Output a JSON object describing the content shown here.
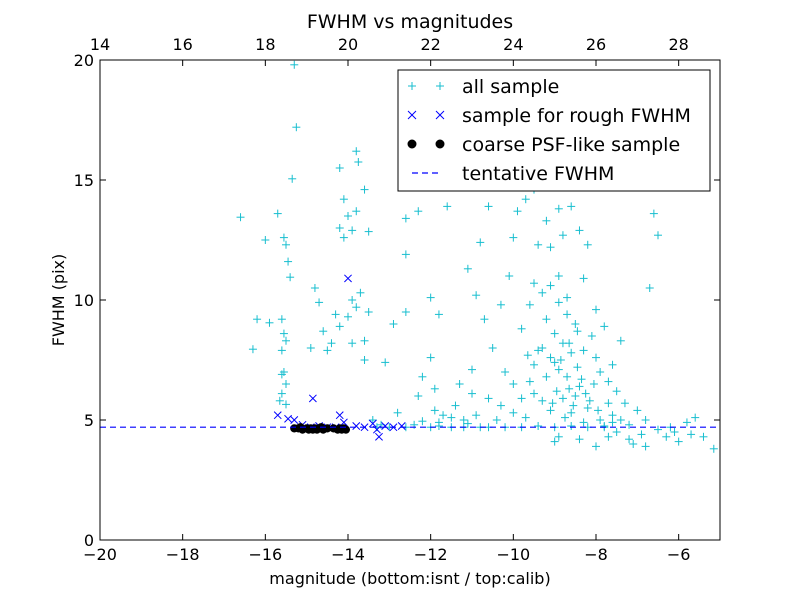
{
  "chart_data": {
    "type": "scatter",
    "title": "FWHM vs magnitudes",
    "xlabel": "magnitude (bottom:isnt / top:calib)",
    "ylabel": "FWHM (pix)",
    "xlim": [
      -20,
      -5
    ],
    "ylim": [
      0,
      20
    ],
    "x_ticks": [
      -20,
      -18,
      -16,
      -14,
      -12,
      -10,
      -8,
      -6
    ],
    "x_tick_labels": [
      "−20",
      "−18",
      "−16",
      "−14",
      "−12",
      "−10",
      "−8",
      "−6"
    ],
    "y_ticks": [
      0,
      5,
      10,
      15,
      20
    ],
    "y_tick_labels": [
      "0",
      "5",
      "10",
      "15",
      "20"
    ],
    "top_axis": {
      "label": "",
      "offset": 34,
      "ticks": [
        14,
        16,
        18,
        20,
        22,
        24,
        26,
        28
      ],
      "tick_labels": [
        "14",
        "16",
        "18",
        "20",
        "22",
        "24",
        "26",
        "28"
      ]
    },
    "grid": false,
    "legend_position": "upper-right",
    "series": [
      {
        "name": "all sample",
        "marker": "+",
        "color": "#17becf",
        "points": [
          [
            -16.6,
            13.45
          ],
          [
            -16.0,
            12.5
          ],
          [
            -15.9,
            9.05
          ],
          [
            -15.7,
            13.6
          ],
          [
            -15.55,
            12.6
          ],
          [
            -15.5,
            12.3
          ],
          [
            -15.45,
            11.6
          ],
          [
            -15.4,
            10.95
          ],
          [
            -15.3,
            19.8
          ],
          [
            -15.25,
            17.2
          ],
          [
            -15.35,
            15.05
          ],
          [
            -15.6,
            9.2
          ],
          [
            -15.55,
            8.6
          ],
          [
            -15.5,
            8.3
          ],
          [
            -15.6,
            7.9
          ],
          [
            -15.55,
            7.0
          ],
          [
            -15.6,
            6.9
          ],
          [
            -15.5,
            6.5
          ],
          [
            -15.6,
            6.1
          ],
          [
            -15.65,
            5.8
          ],
          [
            -15.5,
            5.65
          ],
          [
            -16.2,
            9.2
          ],
          [
            -16.3,
            7.95
          ],
          [
            -14.8,
            10.5
          ],
          [
            -14.7,
            9.9
          ],
          [
            -14.6,
            8.7
          ],
          [
            -14.5,
            7.9
          ],
          [
            -14.9,
            8.0
          ],
          [
            -14.4,
            8.2
          ],
          [
            -14.2,
            8.9
          ],
          [
            -14.3,
            9.4
          ],
          [
            -14.2,
            13.0
          ],
          [
            -14.1,
            14.2
          ],
          [
            -14.0,
            13.5
          ],
          [
            -14.1,
            12.6
          ],
          [
            -14.2,
            15.5
          ],
          [
            -13.8,
            16.2
          ],
          [
            -13.75,
            15.75
          ],
          [
            -13.6,
            14.6
          ],
          [
            -13.8,
            13.7
          ],
          [
            -13.9,
            12.9
          ],
          [
            -13.5,
            12.85
          ],
          [
            -13.7,
            10.3
          ],
          [
            -13.9,
            10.0
          ],
          [
            -14.0,
            9.3
          ],
          [
            -13.8,
            9.7
          ],
          [
            -13.9,
            8.2
          ],
          [
            -13.6,
            8.3
          ],
          [
            -13.6,
            7.5
          ],
          [
            -13.5,
            9.5
          ],
          [
            -13.1,
            7.4
          ],
          [
            -12.9,
            9.0
          ],
          [
            -12.6,
            13.4
          ],
          [
            -12.6,
            11.9
          ],
          [
            -12.6,
            9.5
          ],
          [
            -12.3,
            13.7
          ],
          [
            -12.0,
            10.1
          ],
          [
            -12.0,
            7.6
          ],
          [
            -12.2,
            6.8
          ],
          [
            -12.3,
            6.0
          ],
          [
            -11.9,
            5.4
          ],
          [
            -11.7,
            5.2
          ],
          [
            -11.5,
            5.1
          ],
          [
            -11.6,
            13.9
          ],
          [
            -11.8,
            9.4
          ],
          [
            -11.9,
            6.3
          ],
          [
            -11.2,
            5.0
          ],
          [
            -11.0,
            6.1
          ],
          [
            -11.3,
            6.5
          ],
          [
            -11.0,
            7.1
          ],
          [
            -10.9,
            10.2
          ],
          [
            -11.1,
            11.3
          ],
          [
            -10.8,
            12.4
          ],
          [
            -10.6,
            13.9
          ],
          [
            -10.4,
            15.1
          ],
          [
            -10.7,
            9.2
          ],
          [
            -10.3,
            9.8
          ],
          [
            -10.1,
            11.0
          ],
          [
            -10.0,
            12.6
          ],
          [
            -9.9,
            13.7
          ],
          [
            -9.7,
            14.2
          ],
          [
            -9.5,
            14.6
          ],
          [
            -9.4,
            12.3
          ],
          [
            -9.2,
            13.3
          ],
          [
            -9.1,
            12.2
          ],
          [
            -8.9,
            13.8
          ],
          [
            -8.8,
            12.7
          ],
          [
            -8.6,
            13.9
          ],
          [
            -8.4,
            12.9
          ],
          [
            -8.2,
            12.3
          ],
          [
            -8.0,
            9.6
          ],
          [
            -7.8,
            8.9
          ],
          [
            -7.4,
            8.3
          ],
          [
            -7.6,
            7.3
          ],
          [
            -6.6,
            13.6
          ],
          [
            -6.5,
            12.7
          ],
          [
            -6.7,
            10.5
          ],
          [
            -7.0,
            5.4
          ],
          [
            -6.8,
            5.0
          ],
          [
            -6.5,
            4.6
          ],
          [
            -6.2,
            4.7
          ],
          [
            -5.8,
            4.9
          ],
          [
            -5.6,
            5.1
          ],
          [
            -5.4,
            4.3
          ],
          [
            -5.15,
            3.8
          ],
          [
            -6.0,
            4.1
          ],
          [
            -6.8,
            3.9
          ],
          [
            -7.2,
            4.2
          ],
          [
            -7.5,
            4.5
          ],
          [
            -8.0,
            3.9
          ],
          [
            -9.0,
            4.1
          ],
          [
            -10.5,
            8.0
          ],
          [
            -10.2,
            7.0
          ],
          [
            -10.0,
            6.5
          ],
          [
            -9.8,
            8.8
          ],
          [
            -9.6,
            9.8
          ],
          [
            -9.5,
            10.7
          ],
          [
            -9.3,
            10.3
          ],
          [
            -9.2,
            9.2
          ],
          [
            -9.0,
            8.6
          ],
          [
            -8.9,
            11.0
          ],
          [
            -8.7,
            10.1
          ],
          [
            -8.5,
            9.0
          ],
          [
            -8.3,
            10.9
          ],
          [
            -8.1,
            8.5
          ],
          [
            -8.0,
            7.6
          ],
          [
            -7.9,
            7.0
          ],
          [
            -7.7,
            6.6
          ],
          [
            -7.5,
            6.2
          ],
          [
            -7.3,
            5.7
          ],
          [
            -7.6,
            5.2
          ],
          [
            -7.9,
            5.0
          ],
          [
            -8.2,
            5.5
          ],
          [
            -8.4,
            6.4
          ],
          [
            -8.6,
            7.8
          ],
          [
            -8.8,
            8.2
          ],
          [
            -9.0,
            7.4
          ],
          [
            -9.2,
            6.8
          ],
          [
            -9.4,
            7.9
          ],
          [
            -9.6,
            6.6
          ],
          [
            -9.8,
            5.9
          ],
          [
            -10.0,
            5.3
          ],
          [
            -10.3,
            5.6
          ],
          [
            -10.6,
            5.9
          ],
          [
            -10.9,
            5.2
          ],
          [
            -11.4,
            5.6
          ],
          [
            -11.8,
            4.9
          ],
          [
            -12.4,
            4.8
          ],
          [
            -12.8,
            5.3
          ],
          [
            -13.2,
            4.8
          ],
          [
            -13.4,
            5.0
          ],
          [
            -12.2,
            4.95
          ],
          [
            -11.1,
            4.85
          ],
          [
            -10.4,
            5.0
          ],
          [
            -9.7,
            5.1
          ],
          [
            -9.1,
            5.4
          ],
          [
            -8.6,
            5.3
          ],
          [
            -8.3,
            4.9
          ],
          [
            -7.8,
            4.7
          ],
          [
            -8.5,
            6.0
          ],
          [
            -8.7,
            6.8
          ],
          [
            -8.9,
            7.1
          ],
          [
            -9.1,
            7.6
          ],
          [
            -8.8,
            5.9
          ],
          [
            -8.55,
            5.6
          ],
          [
            -8.45,
            7.2
          ],
          [
            -8.35,
            6.7
          ],
          [
            -8.65,
            6.3
          ],
          [
            -8.25,
            6.1
          ],
          [
            -8.15,
            5.8
          ],
          [
            -8.05,
            6.5
          ],
          [
            -7.95,
            5.4
          ],
          [
            -8.75,
            5.1
          ],
          [
            -9.3,
            5.8
          ],
          [
            -9.5,
            6.1
          ],
          [
            -7.7,
            5.7
          ],
          [
            -7.6,
            4.9
          ],
          [
            -7.4,
            5.0
          ],
          [
            -7.2,
            4.8
          ],
          [
            -8.95,
            6.2
          ],
          [
            -9.05,
            5.7
          ],
          [
            -8.85,
            7.5
          ],
          [
            -8.65,
            8.2
          ],
          [
            -8.45,
            8.7
          ],
          [
            -8.3,
            7.9
          ],
          [
            -8.7,
            9.4
          ],
          [
            -8.9,
            9.9
          ],
          [
            -9.1,
            10.6
          ],
          [
            -9.3,
            8.0
          ],
          [
            -9.5,
            7.3
          ],
          [
            -9.65,
            7.7
          ],
          [
            -10.6,
            4.7
          ],
          [
            -10.2,
            4.7
          ],
          [
            -9.8,
            4.7
          ],
          [
            -9.4,
            4.75
          ],
          [
            -9.0,
            4.7
          ],
          [
            -8.6,
            4.75
          ],
          [
            -8.2,
            4.7
          ],
          [
            -7.8,
            4.75
          ],
          [
            -11.5,
            4.7
          ],
          [
            -12.0,
            4.7
          ],
          [
            -12.6,
            4.7
          ],
          [
            -13.0,
            4.7
          ],
          [
            -13.3,
            4.7
          ],
          [
            -11.8,
            4.75
          ],
          [
            -11.2,
            4.7
          ],
          [
            -10.8,
            4.7
          ],
          [
            -6.1,
            4.5
          ],
          [
            -5.7,
            4.4
          ],
          [
            -6.3,
            4.3
          ],
          [
            -6.9,
            4.4
          ],
          [
            -7.1,
            4.0
          ],
          [
            -7.7,
            4.3
          ],
          [
            -8.4,
            4.2
          ],
          [
            -8.9,
            4.3
          ]
        ]
      },
      {
        "name": "sample for rough FWHM",
        "marker": "x",
        "color": "#0000ff",
        "points": [
          [
            -15.7,
            5.2
          ],
          [
            -15.45,
            5.05
          ],
          [
            -15.3,
            5.0
          ],
          [
            -15.1,
            4.8
          ],
          [
            -14.85,
            5.9
          ],
          [
            -14.9,
            4.7
          ],
          [
            -14.7,
            4.75
          ],
          [
            -14.5,
            4.7
          ],
          [
            -14.3,
            4.7
          ],
          [
            -14.2,
            5.2
          ],
          [
            -14.1,
            4.9
          ],
          [
            -14.0,
            10.9
          ],
          [
            -13.8,
            4.75
          ],
          [
            -13.6,
            4.7
          ],
          [
            -13.4,
            4.85
          ],
          [
            -13.3,
            4.6
          ],
          [
            -13.25,
            4.3
          ],
          [
            -13.1,
            4.75
          ],
          [
            -12.9,
            4.7
          ],
          [
            -12.7,
            4.75
          ]
        ]
      },
      {
        "name": "coarse PSF-like sample",
        "marker": "o",
        "color": "#000000",
        "points": [
          [
            -15.3,
            4.65
          ],
          [
            -15.2,
            4.65
          ],
          [
            -15.1,
            4.6
          ],
          [
            -15.0,
            4.65
          ],
          [
            -14.95,
            4.6
          ],
          [
            -14.9,
            4.65
          ],
          [
            -14.85,
            4.6
          ],
          [
            -14.8,
            4.65
          ],
          [
            -14.75,
            4.6
          ],
          [
            -14.7,
            4.65
          ],
          [
            -14.6,
            4.6
          ],
          [
            -14.5,
            4.65
          ],
          [
            -14.35,
            4.65
          ],
          [
            -14.25,
            4.6
          ],
          [
            -14.2,
            4.65
          ],
          [
            -14.15,
            4.6
          ],
          [
            -14.1,
            4.65
          ],
          [
            -14.05,
            4.6
          ],
          [
            -15.15,
            4.7
          ],
          [
            -14.65,
            4.7
          ]
        ]
      },
      {
        "name": "tentative FWHM",
        "style": "dashed-line",
        "color": "#0000ff",
        "y": 4.7
      }
    ]
  }
}
